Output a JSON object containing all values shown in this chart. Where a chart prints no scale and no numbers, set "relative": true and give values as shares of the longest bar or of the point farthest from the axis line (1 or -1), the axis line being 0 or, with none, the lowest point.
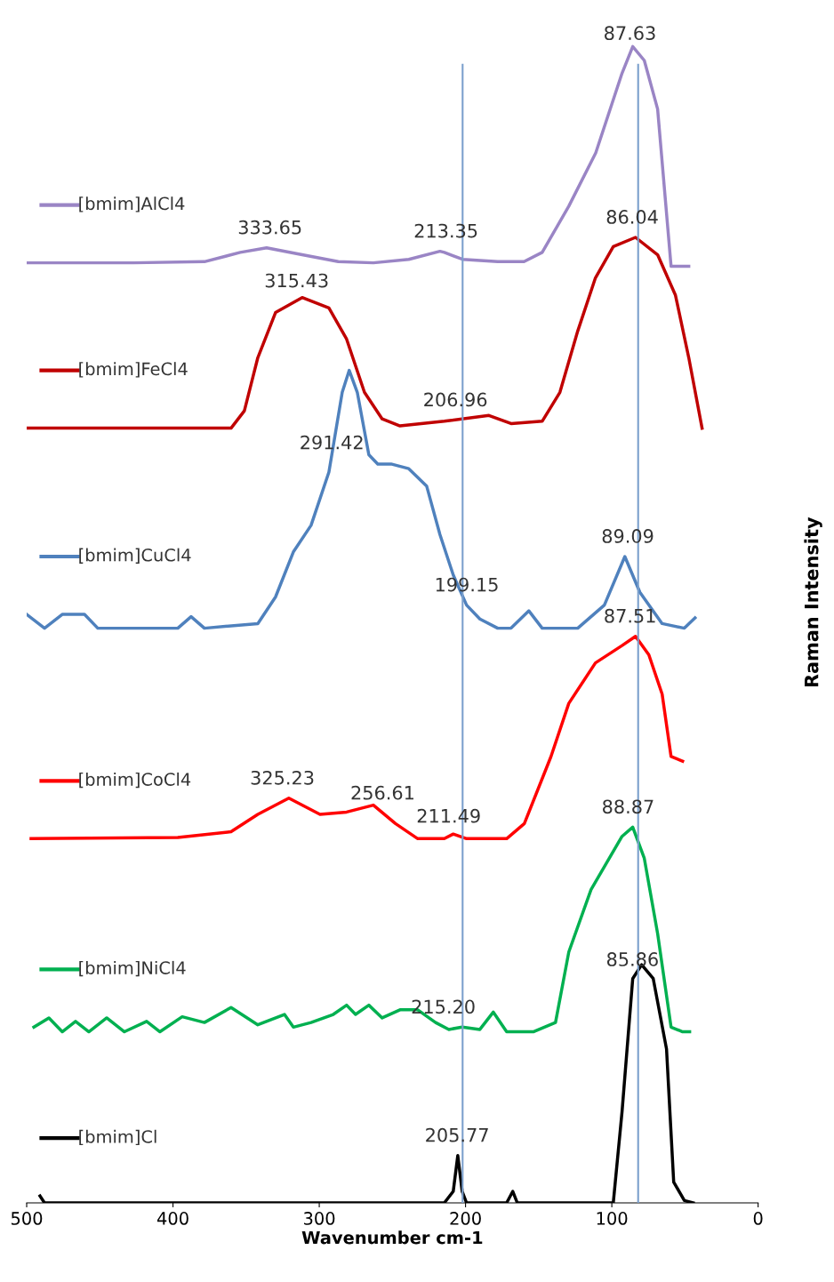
{
  "chart_data": {
    "type": "line",
    "relative": true,
    "xlabel": "Wavenumber cm-1",
    "ylabel": "Raman Intensity",
    "xlim": [
      500,
      0
    ],
    "xticks": [
      500,
      400,
      300,
      200,
      100,
      0
    ],
    "grid": false,
    "legend": "left",
    "marker": "none",
    "line_style": "solid",
    "series": [
      {
        "name": "[bmim]AlCl4",
        "color": "#9a85c5",
        "x": [
          500,
          427,
          378.5,
          354,
          336,
          311.7,
          287,
          263,
          238.8,
          217.5,
          214.5,
          202,
          178,
          160,
          147.6,
          129.4,
          111,
          93,
          85.7,
          77.8,
          68.7,
          59.5,
          53.5,
          47.4
        ],
        "values": [
          0.813,
          0.813,
          0.814,
          0.822,
          0.826,
          0.82,
          0.814,
          0.813,
          0.816,
          0.823,
          0.822,
          0.816,
          0.814,
          0.814,
          0.822,
          0.862,
          0.908,
          0.977,
          1,
          0.988,
          0.946,
          0.81,
          0.81,
          0.81
        ]
      },
      {
        "name": "[bmim]FeCl4",
        "color": "#c00000",
        "x": [
          500,
          360.3,
          351.2,
          342,
          329.9,
          311.7,
          293.4,
          281.3,
          269.1,
          257,
          244.8,
          214.5,
          184,
          168.9,
          147.6,
          135.5,
          123.3,
          111.2,
          99,
          83.8,
          68.7,
          56.5,
          47.4,
          38.3
        ],
        "values": [
          0.67,
          0.67,
          0.685,
          0.731,
          0.77,
          0.783,
          0.774,
          0.747,
          0.701,
          0.678,
          0.672,
          0.676,
          0.681,
          0.674,
          0.676,
          0.701,
          0.754,
          0.8,
          0.827,
          0.835,
          0.82,
          0.785,
          0.731,
          0.67
        ]
      },
      {
        "name": "[bmim]CuCl4",
        "color": "#4f81bd",
        "x": [
          500,
          487.8,
          475.7,
          460.5,
          451.4,
          396.7,
          387.6,
          378.5,
          342,
          329.9,
          317.7,
          305.6,
          293.4,
          284.3,
          279.5,
          274,
          266.1,
          260,
          250.9,
          238.8,
          226.6,
          217.5,
          208.4,
          199.3,
          190.2,
          178,
          168.9,
          156.7,
          147.6,
          123.3,
          105.1,
          91.1,
          80.8,
          65.6,
          50.4,
          43.1
        ],
        "values": [
          0.509,
          0.497,
          0.509,
          0.509,
          0.497,
          0.497,
          0.507,
          0.497,
          0.501,
          0.524,
          0.563,
          0.586,
          0.632,
          0.701,
          0.72,
          0.701,
          0.647,
          0.639,
          0.639,
          0.635,
          0.62,
          0.578,
          0.543,
          0.517,
          0.505,
          0.497,
          0.497,
          0.512,
          0.497,
          0.497,
          0.517,
          0.559,
          0.528,
          0.501,
          0.497,
          0.506
        ]
      },
      {
        "name": "[bmim]CoCl4",
        "color": "#ff0000",
        "x": [
          497,
          396.7,
          360.3,
          342,
          320.8,
          299.5,
          281.3,
          263,
          247.9,
          232.7,
          214.5,
          208.4,
          199.3,
          171.9,
          159.8,
          141.6,
          129.4,
          111.2,
          93,
          83.8,
          74.7,
          65.6,
          59.5,
          51.6
        ],
        "values": [
          0.315,
          0.316,
          0.321,
          0.336,
          0.35,
          0.336,
          0.338,
          0.344,
          0.328,
          0.315,
          0.315,
          0.319,
          0.315,
          0.315,
          0.328,
          0.386,
          0.432,
          0.467,
          0.482,
          0.49,
          0.474,
          0.44,
          0.386,
          0.382
        ]
      },
      {
        "name": "[bmim]NiCl4",
        "color": "#00b050",
        "x": [
          495.1,
          484.8,
          475.7,
          466.6,
          457.5,
          445.3,
          433.2,
          418,
          408.9,
          393.7,
          378.5,
          360.3,
          342,
          323.8,
          317.7,
          305.6,
          290.4,
          281.3,
          275.2,
          266.1,
          257,
          244.8,
          232.7,
          220.5,
          211.4,
          202.3,
          190.2,
          181,
          171.9,
          153.7,
          138.5,
          129.4,
          114.2,
          93,
          85.7,
          77.8,
          68.7,
          59.5,
          51.6,
          46.8
        ],
        "values": [
          0.152,
          0.16,
          0.148,
          0.157,
          0.148,
          0.16,
          0.148,
          0.157,
          0.148,
          0.161,
          0.156,
          0.169,
          0.154,
          0.163,
          0.152,
          0.156,
          0.163,
          0.171,
          0.163,
          0.171,
          0.16,
          0.167,
          0.167,
          0.156,
          0.15,
          0.152,
          0.15,
          0.165,
          0.148,
          0.148,
          0.156,
          0.217,
          0.271,
          0.317,
          0.325,
          0.298,
          0.233,
          0.152,
          0.148,
          0.148
        ]
      },
      {
        "name": "[bmim]Cl",
        "color": "#000000",
        "x": [
          490.9,
          487.8,
          214.5,
          208.4,
          205.3,
          202.3,
          199.3,
          171.9,
          167.7,
          164.6,
          99,
          93,
          85.7,
          79.6,
          71.7,
          62.6,
          57.7,
          50.4,
          44.3
        ],
        "values": [
          0.006,
          0,
          0,
          0.01,
          0.041,
          0.01,
          0,
          0,
          0.01,
          0,
          0,
          0.079,
          0.194,
          0.206,
          0.194,
          0.133,
          0.018,
          0.002,
          0
        ]
      }
    ],
    "ref_lines": [
      {
        "axis": "x",
        "value": 202,
        "color": "#7ba0cd"
      },
      {
        "axis": "x",
        "value": 82,
        "color": "#7ba0cd"
      }
    ],
    "annotations": [
      {
        "text": "87.63",
        "x": 87.63,
        "y": 0.994
      },
      {
        "text": "333.65",
        "x": 333.65,
        "y": 0.826
      },
      {
        "text": "213.35",
        "x": 213.35,
        "y": 0.823
      },
      {
        "text": "86.04",
        "x": 86.04,
        "y": 0.835
      },
      {
        "text": "315.43",
        "x": 315.43,
        "y": 0.78
      },
      {
        "text": "206.96",
        "x": 206.96,
        "y": 0.677
      },
      {
        "text": "291.42",
        "x": 291.42,
        "y": 0.64
      },
      {
        "text": "199.15",
        "x": 199.15,
        "y": 0.517
      },
      {
        "text": "89.09",
        "x": 89.09,
        "y": 0.559
      },
      {
        "text": "87.51",
        "x": 87.51,
        "y": 0.49
      },
      {
        "text": "325.23",
        "x": 325.23,
        "y": 0.35
      },
      {
        "text": "256.61",
        "x": 256.61,
        "y": 0.337
      },
      {
        "text": "211.49",
        "x": 211.49,
        "y": 0.317
      },
      {
        "text": "88.87",
        "x": 88.87,
        "y": 0.325
      },
      {
        "text": "215.20",
        "x": 215.2,
        "y": 0.152
      },
      {
        "text": "85.86",
        "x": 85.86,
        "y": 0.193
      },
      {
        "text": "205.77",
        "x": 205.77,
        "y": 0.041
      }
    ]
  }
}
